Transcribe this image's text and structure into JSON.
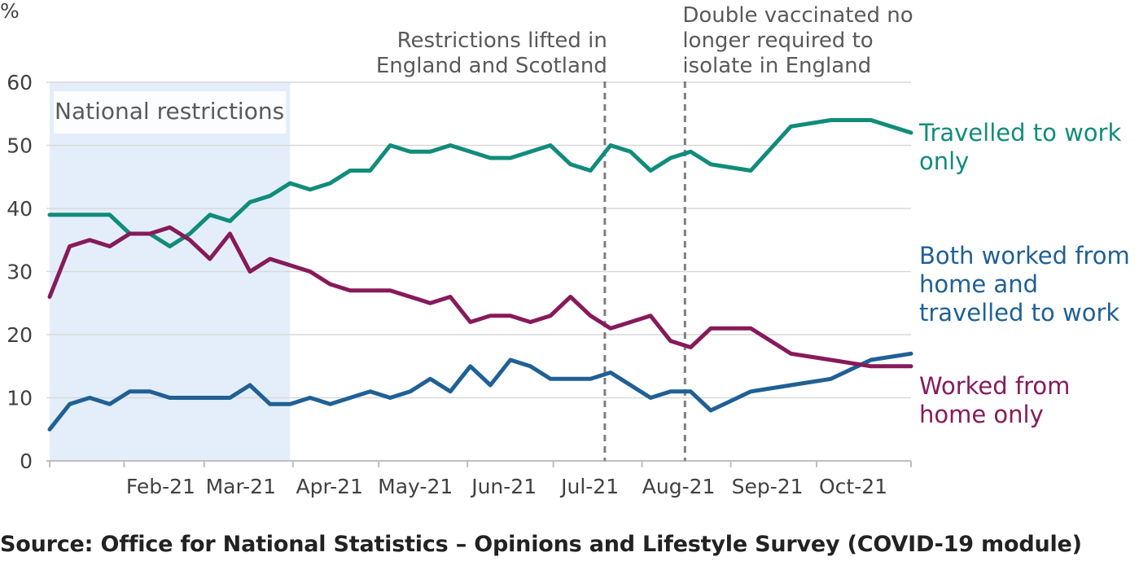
{
  "chart_data": {
    "type": "line",
    "y_unit": "%",
    "ylim": [
      0,
      60
    ],
    "yticks": [
      0,
      10,
      20,
      30,
      40,
      50,
      60
    ],
    "grid": true,
    "x_ticks": [
      "Feb-21",
      "Mar-21",
      "Apr-21",
      "May-21",
      "Jun-21",
      "Jul-21",
      "Aug-21",
      "Sep-21",
      "Oct-21"
    ],
    "x": [
      "2021-01-06",
      "2021-01-13",
      "2021-01-20",
      "2021-01-27",
      "2021-02-03",
      "2021-02-10",
      "2021-02-17",
      "2021-02-24",
      "2021-03-03",
      "2021-03-10",
      "2021-03-17",
      "2021-03-24",
      "2021-03-31",
      "2021-04-07",
      "2021-04-14",
      "2021-04-21",
      "2021-04-28",
      "2021-05-05",
      "2021-05-12",
      "2021-05-19",
      "2021-05-26",
      "2021-06-02",
      "2021-06-09",
      "2021-06-16",
      "2021-06-23",
      "2021-06-30",
      "2021-07-07",
      "2021-07-14",
      "2021-07-21",
      "2021-07-28",
      "2021-08-04",
      "2021-08-11",
      "2021-08-18",
      "2021-08-25",
      "2021-09-08",
      "2021-09-22",
      "2021-10-06",
      "2021-10-20",
      "2021-11-03"
    ],
    "series": [
      {
        "name": "Travelled to work only",
        "label_lines": [
          "Travelled to work",
          "only"
        ],
        "color": "#118c7b",
        "values": [
          39,
          39,
          39,
          39,
          36,
          36,
          34,
          36,
          39,
          38,
          41,
          42,
          44,
          43,
          44,
          46,
          46,
          50,
          49,
          49,
          50,
          49,
          48,
          48,
          49,
          50,
          47,
          46,
          50,
          49,
          46,
          48,
          49,
          47,
          46,
          53,
          54,
          54,
          52
        ]
      },
      {
        "name": "Both worked from home and travelled to work",
        "label_lines": [
          "Both worked from",
          "home and",
          "travelled to work"
        ],
        "color": "#206095",
        "values": [
          5,
          9,
          10,
          9,
          11,
          11,
          10,
          10,
          10,
          10,
          12,
          9,
          9,
          10,
          9,
          10,
          11,
          10,
          11,
          13,
          11,
          15,
          12,
          16,
          15,
          13,
          13,
          13,
          14,
          12,
          10,
          11,
          11,
          8,
          11,
          12,
          13,
          16,
          17
        ]
      },
      {
        "name": "Worked from home only",
        "label_lines": [
          "Worked from",
          "home only"
        ],
        "color": "#871a5b",
        "values": [
          26,
          34,
          35,
          34,
          36,
          36,
          37,
          35,
          32,
          36,
          30,
          32,
          31,
          30,
          28,
          27,
          27,
          27,
          26,
          25,
          26,
          22,
          23,
          23,
          22,
          23,
          26,
          23,
          21,
          22,
          23,
          19,
          18,
          21,
          21,
          17,
          16,
          15,
          15
        ]
      }
    ],
    "shaded_band": {
      "label": "National restrictions",
      "from": "2021-01-06",
      "to": "2021-03-31"
    },
    "annotations": [
      {
        "date": "2021-07-19",
        "label_lines": [
          "Restrictions lifted in",
          "England and Scotland"
        ]
      },
      {
        "date": "2021-08-16",
        "label_lines": [
          "Double vaccinated no",
          "longer required to",
          "isolate in England"
        ]
      }
    ]
  },
  "source": "Source: Office for National Statistics – Opinions and Lifestyle Survey (COVID-19 module)",
  "colors": {
    "grid": "#d9d9d9",
    "band": "#e3eefa",
    "dashed": "#7f7f7f",
    "axis": "#bfbfbf"
  }
}
